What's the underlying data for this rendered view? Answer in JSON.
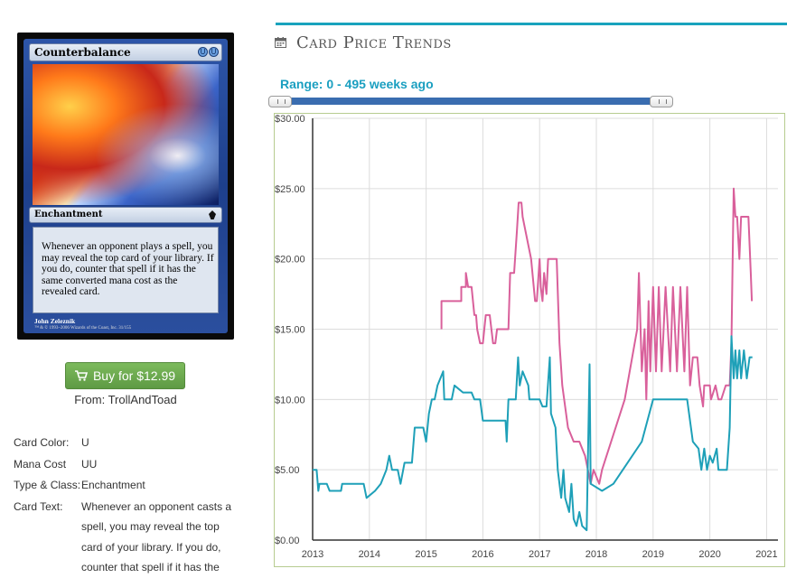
{
  "card": {
    "name": "Counterbalance",
    "mana_symbols": [
      "U",
      "U"
    ],
    "type_line": "Enchantment",
    "rules_text": "Whenever an opponent plays a spell, you may reveal the top card of your library. If you do, counter that spell if it has the same converted mana cost as the revealed card.",
    "artist": "John Zeleznik",
    "copyright": "™ & © 1993–2006 Wizards of the Coast, Inc. 31/155"
  },
  "buy": {
    "label": "Buy for $12.99",
    "icon": "shopping-cart-icon",
    "color": "#6aaa4e",
    "from": "From: TrollAndToad"
  },
  "details": [
    {
      "label": "Card Color:",
      "value": "U"
    },
    {
      "label": "Mana Cost",
      "value": "UU"
    },
    {
      "label": "Type & Class:",
      "value": "Enchantment"
    },
    {
      "label": "Card Text:",
      "value": "Whenever an opponent casts a spell, you may reveal the top card of your library. If you do, counter that spell if it has the"
    }
  ],
  "section": {
    "title": "Card Price Trends",
    "icon": "calendar-icon",
    "accent": "#18a3bd"
  },
  "range": {
    "label": "Range: 0 - 495 weeks ago",
    "min_weeks": 0,
    "max_weeks": 495,
    "selected_from": 0,
    "selected_to": 495
  },
  "chart_data": {
    "type": "line",
    "title": "",
    "xlabel": "",
    "ylabel": "",
    "xlim": [
      2013.0,
      2021.2
    ],
    "ylim": [
      0,
      30
    ],
    "x_ticks": [
      "2013",
      "2014",
      "2015",
      "2016",
      "2017",
      "2018",
      "2019",
      "2020",
      "2021"
    ],
    "y_ticks": [
      "$0.00",
      "$5.00",
      "$10.00",
      "$15.00",
      "$20.00",
      "$25.00",
      "$30.00"
    ],
    "grid": true,
    "legend": "none",
    "series": [
      {
        "color": "#d9609b",
        "points": [
          [
            2015.27,
            15.0
          ],
          [
            2015.27,
            17.0
          ],
          [
            2015.62,
            17.0
          ],
          [
            2015.62,
            18.0
          ],
          [
            2015.7,
            18.0
          ],
          [
            2015.7,
            19.0
          ],
          [
            2015.74,
            18.0
          ],
          [
            2015.8,
            18.0
          ],
          [
            2015.85,
            16.0
          ],
          [
            2015.88,
            16.0
          ],
          [
            2015.9,
            15.0
          ],
          [
            2015.95,
            14.0
          ],
          [
            2016.0,
            14.0
          ],
          [
            2016.05,
            16.0
          ],
          [
            2016.12,
            16.0
          ],
          [
            2016.18,
            14.0
          ],
          [
            2016.22,
            14.0
          ],
          [
            2016.25,
            15.0
          ],
          [
            2016.45,
            15.0
          ],
          [
            2016.48,
            19.0
          ],
          [
            2016.55,
            19.0
          ],
          [
            2016.6,
            22.0
          ],
          [
            2016.63,
            24.0
          ],
          [
            2016.68,
            24.0
          ],
          [
            2016.7,
            23.0
          ],
          [
            2016.75,
            22.0
          ],
          [
            2016.85,
            20.0
          ],
          [
            2016.92,
            17.0
          ],
          [
            2016.95,
            17.0
          ],
          [
            2017.0,
            20.0
          ],
          [
            2017.02,
            18.0
          ],
          [
            2017.05,
            17.0
          ],
          [
            2017.08,
            19.0
          ],
          [
            2017.12,
            17.5
          ],
          [
            2017.15,
            20.0
          ],
          [
            2017.3,
            20.0
          ],
          [
            2017.35,
            14.0
          ],
          [
            2017.4,
            11.0
          ],
          [
            2017.5,
            8.0
          ],
          [
            2017.6,
            7.0
          ],
          [
            2017.7,
            7.0
          ],
          [
            2017.8,
            6.0
          ],
          [
            2017.9,
            4.0
          ],
          [
            2017.95,
            5.0
          ],
          [
            2018.0,
            4.5
          ],
          [
            2018.05,
            4.0
          ],
          [
            2018.1,
            5.0
          ],
          [
            2018.5,
            10.0
          ],
          [
            2018.72,
            15.0
          ],
          [
            2018.75,
            19.0
          ],
          [
            2018.8,
            12.0
          ],
          [
            2018.85,
            15.0
          ],
          [
            2018.88,
            10.0
          ],
          [
            2018.92,
            17.0
          ],
          [
            2018.95,
            12.0
          ],
          [
            2019.0,
            18.0
          ],
          [
            2019.05,
            12.0
          ],
          [
            2019.1,
            18.0
          ],
          [
            2019.15,
            12.0
          ],
          [
            2019.22,
            18.0
          ],
          [
            2019.3,
            12.0
          ],
          [
            2019.35,
            18.0
          ],
          [
            2019.42,
            12.0
          ],
          [
            2019.48,
            18.0
          ],
          [
            2019.55,
            12.0
          ],
          [
            2019.6,
            18.0
          ],
          [
            2019.65,
            11.0
          ],
          [
            2019.7,
            13.0
          ],
          [
            2019.78,
            13.0
          ],
          [
            2019.82,
            11.0
          ],
          [
            2019.88,
            9.5
          ],
          [
            2019.9,
            11.0
          ],
          [
            2020.0,
            11.0
          ],
          [
            2020.02,
            10.0
          ],
          [
            2020.1,
            11.0
          ],
          [
            2020.15,
            10.0
          ],
          [
            2020.2,
            10.0
          ],
          [
            2020.28,
            11.0
          ],
          [
            2020.35,
            11.0
          ],
          [
            2020.38,
            14.0
          ],
          [
            2020.42,
            25.0
          ],
          [
            2020.45,
            23.0
          ],
          [
            2020.48,
            23.0
          ],
          [
            2020.52,
            20.0
          ],
          [
            2020.55,
            23.0
          ],
          [
            2020.68,
            23.0
          ],
          [
            2020.72,
            19.0
          ],
          [
            2020.74,
            17.0
          ]
        ]
      },
      {
        "color": "#1ea0b8",
        "points": [
          [
            2013.0,
            5.0
          ],
          [
            2013.07,
            5.0
          ],
          [
            2013.1,
            3.5
          ],
          [
            2013.12,
            4.0
          ],
          [
            2013.25,
            4.0
          ],
          [
            2013.3,
            3.5
          ],
          [
            2013.5,
            3.5
          ],
          [
            2013.52,
            4.0
          ],
          [
            2013.9,
            4.0
          ],
          [
            2013.95,
            3.0
          ],
          [
            2014.1,
            3.5
          ],
          [
            2014.2,
            4.0
          ],
          [
            2014.3,
            5.0
          ],
          [
            2014.35,
            6.0
          ],
          [
            2014.4,
            5.0
          ],
          [
            2014.5,
            5.0
          ],
          [
            2014.55,
            4.0
          ],
          [
            2014.62,
            5.5
          ],
          [
            2014.75,
            5.5
          ],
          [
            2014.8,
            8.0
          ],
          [
            2014.95,
            8.0
          ],
          [
            2015.0,
            7.0
          ],
          [
            2015.05,
            9.0
          ],
          [
            2015.1,
            10.0
          ],
          [
            2015.15,
            10.0
          ],
          [
            2015.2,
            11.0
          ],
          [
            2015.3,
            12.0
          ],
          [
            2015.32,
            10.0
          ],
          [
            2015.45,
            10.0
          ],
          [
            2015.5,
            11.0
          ],
          [
            2015.65,
            10.5
          ],
          [
            2015.8,
            10.5
          ],
          [
            2015.85,
            10.0
          ],
          [
            2015.95,
            10.0
          ],
          [
            2016.0,
            8.5
          ],
          [
            2016.4,
            8.5
          ],
          [
            2016.42,
            7.0
          ],
          [
            2016.45,
            10.0
          ],
          [
            2016.58,
            10.0
          ],
          [
            2016.62,
            13.0
          ],
          [
            2016.65,
            11.0
          ],
          [
            2016.7,
            12.0
          ],
          [
            2016.8,
            11.0
          ],
          [
            2016.82,
            10.0
          ],
          [
            2016.95,
            10.0
          ],
          [
            2017.0,
            10.0
          ],
          [
            2017.05,
            9.5
          ],
          [
            2017.12,
            9.5
          ],
          [
            2017.18,
            13.0
          ],
          [
            2017.2,
            9.0
          ],
          [
            2017.28,
            8.0
          ],
          [
            2017.32,
            5.0
          ],
          [
            2017.38,
            3.0
          ],
          [
            2017.42,
            5.0
          ],
          [
            2017.45,
            3.0
          ],
          [
            2017.52,
            2.0
          ],
          [
            2017.56,
            4.0
          ],
          [
            2017.6,
            1.5
          ],
          [
            2017.65,
            1.0
          ],
          [
            2017.7,
            2.0
          ],
          [
            2017.75,
            1.0
          ],
          [
            2017.83,
            0.7
          ],
          [
            2017.88,
            12.5
          ],
          [
            2017.9,
            4.0
          ],
          [
            2018.1,
            3.5
          ],
          [
            2018.3,
            4.0
          ],
          [
            2018.8,
            7.0
          ],
          [
            2019.0,
            10.0
          ],
          [
            2019.4,
            10.0
          ],
          [
            2019.6,
            10.0
          ],
          [
            2019.7,
            7.0
          ],
          [
            2019.8,
            6.5
          ],
          [
            2019.85,
            5.0
          ],
          [
            2019.9,
            6.5
          ],
          [
            2019.95,
            5.0
          ],
          [
            2020.0,
            6.0
          ],
          [
            2020.05,
            5.5
          ],
          [
            2020.12,
            6.5
          ],
          [
            2020.15,
            5.0
          ],
          [
            2020.3,
            5.0
          ],
          [
            2020.35,
            8.0
          ],
          [
            2020.38,
            14.5
          ],
          [
            2020.42,
            11.5
          ],
          [
            2020.45,
            13.5
          ],
          [
            2020.48,
            11.5
          ],
          [
            2020.52,
            13.5
          ],
          [
            2020.55,
            11.5
          ],
          [
            2020.6,
            13.5
          ],
          [
            2020.65,
            11.5
          ],
          [
            2020.7,
            13.0
          ],
          [
            2020.75,
            13.0
          ]
        ]
      }
    ]
  }
}
